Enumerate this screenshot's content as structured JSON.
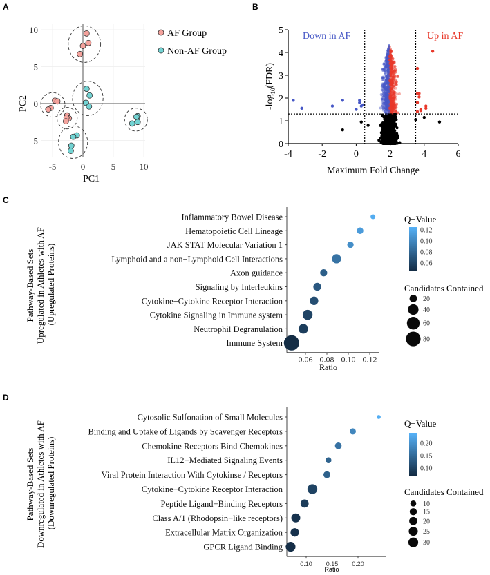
{
  "panel_labels": {
    "A": "A",
    "B": "B",
    "C": "C",
    "D": "D"
  },
  "chart_data": [
    {
      "id": "A",
      "type": "scatter",
      "xlabel": "PC1",
      "ylabel": "PC2",
      "xlim": [
        -6.2,
        10.3
      ],
      "ylim": [
        -7.5,
        11
      ],
      "xticks": [
        -5,
        0,
        5,
        10
      ],
      "yticks": [
        -5,
        0,
        5,
        10
      ],
      "legend_placement": "top-right",
      "series": [
        {
          "name": "AF Group",
          "color": "#f4a29c",
          "clusters": [
            [
              [
                0.6,
                9.5
              ],
              [
                0.9,
                8.2
              ],
              [
                0.0,
                7.8
              ],
              [
                -0.5,
                6.7
              ]
            ],
            [
              [
                -4.6,
                0.4
              ],
              [
                -4.2,
                0.3
              ],
              [
                -5.3,
                -0.6
              ],
              [
                -5.7,
                -0.8
              ]
            ],
            [
              [
                -2.6,
                -1.6
              ],
              [
                -2.3,
                -2.0
              ],
              [
                -2.7,
                -1.9
              ],
              [
                -2.8,
                -2.4
              ]
            ]
          ]
        },
        {
          "name": "Non-AF Group",
          "color": "#72d3d3",
          "clusters": [
            [
              [
                0.6,
                2.0
              ],
              [
                1.1,
                1.1
              ],
              [
                0.5,
                0.1
              ],
              [
                1.0,
                -0.4
              ]
            ],
            [
              [
                9.0,
                -1.7
              ],
              [
                8.8,
                -1.8
              ],
              [
                9.0,
                -2.5
              ],
              [
                8.1,
                -2.7
              ]
            ],
            [
              [
                -1.0,
                -4.3
              ],
              [
                -1.6,
                -4.5
              ],
              [
                -1.9,
                -5.7
              ],
              [
                -2.0,
                -6.4
              ]
            ]
          ]
        }
      ]
    },
    {
      "id": "B",
      "type": "scatter",
      "title": "",
      "xlabel": "Maximum Fold Change",
      "ylabel_main": "-log",
      "ylabel_sub": "10",
      "ylabel_tail": "(FDR)",
      "xlim": [
        -4,
        6
      ],
      "ylim": [
        0,
        5
      ],
      "xticks": [
        -4,
        -2,
        0,
        2,
        4,
        6
      ],
      "yticks": [
        0,
        1,
        2,
        3,
        4,
        5
      ],
      "thresholds": {
        "x_low": 0.5,
        "x_high": 3.5,
        "y": 1.3
      },
      "annotations": {
        "down": "Down in AF",
        "up": "Up in AF"
      },
      "colors": {
        "down": "#4657c6",
        "up": "#e8382a",
        "ns": "#000000"
      },
      "bulk": {
        "n": 1600,
        "center_x": 1.95,
        "spread_x": 0.33,
        "max_y": 4.35
      },
      "down_points": [
        [
          -3.7,
          1.9
        ],
        [
          -3.2,
          1.55
        ],
        [
          -1.4,
          1.65
        ],
        [
          -0.8,
          1.9
        ],
        [
          0.0,
          1.5
        ],
        [
          0.2,
          1.9
        ],
        [
          0.2,
          1.8
        ],
        [
          0.3,
          1.65
        ],
        [
          0.4,
          1.7
        ]
      ],
      "up_points": [
        [
          4.5,
          4.05
        ],
        [
          3.6,
          3.3
        ],
        [
          3.6,
          2.2
        ],
        [
          3.7,
          2.2
        ],
        [
          3.6,
          1.8
        ],
        [
          3.7,
          2.05
        ],
        [
          4.1,
          1.65
        ],
        [
          4.1,
          1.55
        ],
        [
          3.8,
          1.5
        ],
        [
          3.8,
          1.45
        ],
        [
          3.6,
          1.4
        ]
      ],
      "ns_points": [
        [
          -0.8,
          0.6
        ],
        [
          0.3,
          0.95
        ],
        [
          4.9,
          0.95
        ],
        [
          4.0,
          1.15
        ],
        [
          3.5,
          1.05
        ],
        [
          0.7,
          0.8
        ]
      ]
    },
    {
      "id": "C",
      "type": "scatter",
      "ylabel_lines": [
        "Pathway-Based Sets",
        "Upregulated in Athletes with AF",
        "(Upregulated Proteins)"
      ],
      "xlabel": "Ratio",
      "xlim": [
        0.044,
        0.128
      ],
      "xticks": [
        0.06,
        0.08,
        0.1,
        0.12
      ],
      "xtick_labels": [
        "0.06",
        "0.08",
        "0.10",
        "0.12"
      ],
      "categories": [
        "Inflammatory Bowel Disease",
        "Hematopoietic Cell Lineage",
        "JAK STAT Molecular Variation 1",
        "Lymphoid and a non−Lymphoid Cell Interactions",
        "Axon guidance",
        "Signaling by Interleukins",
        "Cytokine−Cytokine Receptor Interaction",
        "Cytokine Signaling in Immune system",
        "Neutrophil Degranulation",
        "Immune System"
      ],
      "ratio": [
        0.123,
        0.111,
        0.102,
        0.089,
        0.077,
        0.071,
        0.068,
        0.062,
        0.058,
        0.047
      ],
      "q_value": [
        0.122,
        0.112,
        0.104,
        0.088,
        0.076,
        0.072,
        0.066,
        0.06,
        0.056,
        0.046
      ],
      "candidates": [
        8,
        15,
        14,
        30,
        18,
        22,
        26,
        36,
        34,
        88
      ],
      "q_legend": {
        "title": "Q−Value",
        "range": [
          0.045,
          0.125
        ],
        "ticks": [
          0.06,
          0.08,
          0.1,
          0.12
        ],
        "tick_labels": [
          "0.06",
          "0.08",
          "0.10",
          "0.12"
        ]
      },
      "size_legend": {
        "title": "Candidates Contained",
        "values": [
          20,
          40,
          60,
          80
        ],
        "labels": [
          "20",
          "40",
          "60",
          "80"
        ]
      }
    },
    {
      "id": "D",
      "type": "scatter",
      "ylabel_lines": [
        "Pathway-Based Sets",
        "Downregulated in Athletes with AF",
        "(Downregulated Proteins)"
      ],
      "xlabel": "Ratio",
      "xlim": [
        0.062,
        0.25
      ],
      "xticks": [
        0.1,
        0.15,
        0.2
      ],
      "xtick_labels": [
        "0.10",
        "0.15",
        "0.20"
      ],
      "categories": [
        "Cytosolic Sulfonation of Small Molecules",
        "Binding and Uptake of Ligands by Scavenger Receptors",
        "Chemokine Receptors Bind Chemokines",
        "IL12−Mediated Signaling Events",
        "Viral Protein Interaction With Cytokinse / Receptors",
        "Cytokine−Cytokine Receptor Interaction",
        "Peptide Ligand−Binding Receptors",
        "Class A/1 (Rhodopsin−like receptors)",
        "Extracellular Matrix Organization",
        "GPCR Ligand Binding"
      ],
      "ratio": [
        0.24,
        0.19,
        0.162,
        0.143,
        0.14,
        0.112,
        0.097,
        0.08,
        0.078,
        0.07
      ],
      "q_value": [
        0.235,
        0.185,
        0.16,
        0.14,
        0.138,
        0.1,
        0.092,
        0.08,
        0.078,
        0.074
      ],
      "candidates": [
        4,
        11,
        13,
        10,
        14,
        31,
        20,
        25,
        22,
        30
      ],
      "q_legend": {
        "title": "Q−Value",
        "range": [
          0.07,
          0.239
        ],
        "ticks": [
          0.1,
          0.15,
          0.2
        ],
        "tick_labels": [
          "0.10",
          "0.15",
          "0.20"
        ]
      },
      "size_legend": {
        "title": "Candidates Contained",
        "values": [
          10,
          15,
          20,
          25,
          30
        ],
        "labels": [
          "10",
          "15",
          "20",
          "25",
          "30"
        ]
      }
    }
  ]
}
